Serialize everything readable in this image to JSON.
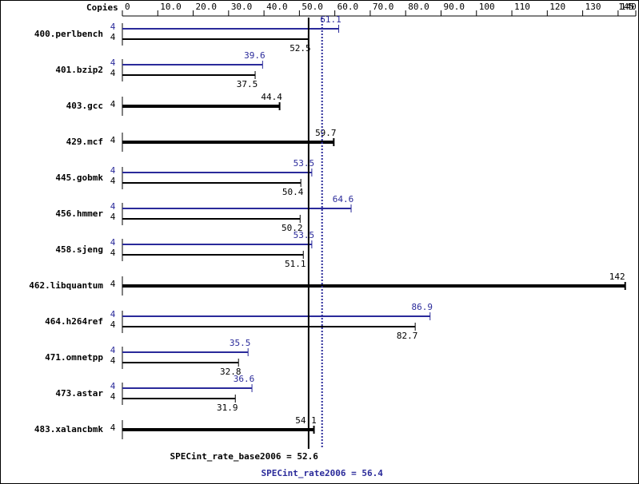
{
  "chart_data": {
    "type": "bar",
    "orientation": "horizontal",
    "copies_label": "Copies",
    "categories": [
      "400.perlbench",
      "401.bzip2",
      "403.gcc",
      "429.mcf",
      "445.gobmk",
      "456.hmmer",
      "458.sjeng",
      "462.libquantum",
      "464.h264ref",
      "471.omnetpp",
      "473.astar",
      "483.xalancbmk"
    ],
    "series": [
      {
        "color": "#2a2a9a",
        "values": [
          61.1,
          39.6,
          null,
          null,
          53.5,
          64.6,
          53.5,
          null,
          86.9,
          35.5,
          36.6,
          null
        ],
        "copies": [
          4,
          4,
          null,
          null,
          4,
          4,
          4,
          null,
          4,
          4,
          4,
          null
        ]
      },
      {
        "color": "#000000",
        "values": [
          52.5,
          37.5,
          44.4,
          59.7,
          50.4,
          50.2,
          51.1,
          142,
          82.7,
          32.8,
          31.9,
          54.1
        ],
        "copies": [
          4,
          4,
          4,
          4,
          4,
          4,
          4,
          4,
          4,
          4,
          4,
          4
        ]
      }
    ],
    "xlim": [
      0,
      145
    ],
    "xticks": [
      0,
      {
        "value": 10,
        "label": "10.0"
      },
      {
        "value": 20,
        "label": "20.0"
      },
      {
        "value": 30,
        "label": "30.0"
      },
      {
        "value": 40,
        "label": "40.0"
      },
      {
        "value": 50,
        "label": "50.0"
      },
      {
        "value": 60,
        "label": "60.0"
      },
      {
        "value": 70,
        "label": "70.0"
      },
      {
        "value": 80,
        "label": "80.0"
      },
      {
        "value": 90,
        "label": "90.0"
      },
      100,
      110,
      120,
      130,
      140,
      145
    ],
    "reference_lines": [
      {
        "label": "SPECint_rate_base2006 = 52.6",
        "value": 52.6,
        "color": "#000000",
        "style": "solid"
      },
      {
        "label": "SPECint_rate2006 = 56.4",
        "value": 56.4,
        "color": "#2a2a9a",
        "style": "dotted"
      }
    ]
  }
}
